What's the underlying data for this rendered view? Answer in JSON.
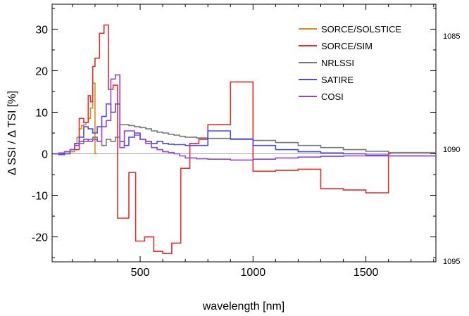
{
  "chart_data": {
    "type": "line",
    "title": "",
    "xlabel": "wavelength [nm]",
    "ylabel": "Δ SSI / Δ TSI [%]",
    "xlim": [
      110,
      1810
    ],
    "ylim": [
      -26,
      36
    ],
    "xticks": [
      500,
      1000,
      1500
    ],
    "yticks": [
      -20,
      -10,
      0,
      10,
      20,
      30
    ],
    "xtick_labels": [
      "500",
      "1000",
      "1500"
    ],
    "ytick_labels": [
      "-20",
      "-10",
      "0",
      "10",
      "20",
      "30"
    ],
    "zero_line": true,
    "grid": false,
    "legend": {
      "position": "top-right"
    },
    "side_labels": [
      "1085",
      "1090",
      "1095"
    ],
    "series": [
      {
        "name": "SORCE/SOLSTICE",
        "color": "#d98c1a",
        "x": [
          115,
          140,
          165,
          190,
          210,
          220,
          230,
          240,
          250,
          260,
          270,
          280,
          290,
          300,
          310
        ],
        "y": [
          0,
          0,
          0,
          0.5,
          2.5,
          4.0,
          6.0,
          6.8,
          7.0,
          7.5,
          8.5,
          11.0,
          17.0,
          0,
          0
        ]
      },
      {
        "name": "SORCE/SIM",
        "color": "#e52b2b",
        "x": [
          210,
          230,
          250,
          270,
          280,
          290,
          300,
          320,
          340,
          360,
          380,
          400,
          425,
          450,
          480,
          520,
          560,
          600,
          640,
          680,
          720,
          760,
          800,
          900,
          1000,
          1100,
          1200,
          1300,
          1400,
          1500,
          1600,
          1610
        ],
        "y": [
          1.0,
          8.5,
          7.5,
          14.0,
          12.5,
          21.0,
          23.0,
          29.0,
          31.0,
          15.5,
          16.5,
          -15.5,
          -15.5,
          -4.5,
          -21.0,
          -20.0,
          -23.5,
          -24.0,
          -21.5,
          -3.5,
          2.5,
          3.5,
          7.0,
          17.3,
          -4.2,
          -4.0,
          -3.7,
          -8.4,
          -8.7,
          -9.4,
          0,
          0
        ]
      },
      {
        "name": "NRLSSI",
        "color": "#777777",
        "x": [
          115,
          140,
          165,
          190,
          210,
          230,
          250,
          270,
          290,
          310,
          330,
          350,
          370,
          390,
          410,
          430,
          450,
          475,
          500,
          525,
          550,
          575,
          600,
          625,
          650,
          675,
          700,
          750,
          800,
          900,
          1000,
          1100,
          1200,
          1300,
          1400,
          1500,
          1600,
          1810
        ],
        "y": [
          0,
          0,
          0.5,
          1.0,
          2.0,
          2.5,
          3.0,
          3.5,
          4.0,
          3.0,
          2.0,
          3.5,
          3.0,
          4.0,
          7.0,
          7.0,
          6.8,
          6.5,
          6.3,
          6.0,
          5.5,
          5.2,
          5.0,
          4.7,
          4.5,
          4.2,
          4.0,
          3.8,
          3.7,
          3.6,
          3.2,
          2.7,
          2.0,
          1.5,
          1.0,
          0.6,
          0.3,
          0.3
        ]
      },
      {
        "name": "SATIRE",
        "color": "#4a4ae6",
        "x": [
          115,
          140,
          165,
          190,
          210,
          230,
          250,
          270,
          290,
          310,
          330,
          350,
          370,
          390,
          410,
          430,
          450,
          475,
          500,
          525,
          550,
          575,
          600,
          625,
          650,
          675,
          700,
          750,
          800,
          900,
          1000,
          1100,
          1200,
          1300,
          1400,
          1500,
          1600,
          1810
        ],
        "y": [
          0,
          -0.2,
          0,
          1.0,
          2.5,
          4.0,
          6.5,
          6.0,
          5.0,
          6.5,
          9.0,
          12.0,
          10.0,
          12.0,
          3.0,
          2.0,
          4.0,
          5.0,
          3.5,
          3.0,
          2.5,
          3.0,
          2.5,
          2.3,
          2.2,
          2.2,
          2.0,
          2.0,
          5.5,
          3.5,
          2.0,
          1.0,
          0.5,
          0.2,
          0.0,
          -0.3,
          -0.5,
          -0.5
        ]
      },
      {
        "name": "COSI",
        "color": "#9b3fd6",
        "x": [
          115,
          140,
          165,
          190,
          210,
          230,
          250,
          270,
          290,
          310,
          330,
          350,
          370,
          390,
          410,
          430,
          450,
          475,
          500,
          525,
          550,
          575,
          600,
          625,
          650,
          675,
          700,
          750,
          800,
          900,
          1000,
          1100,
          1200,
          1300,
          1400,
          1500,
          1600,
          1810
        ],
        "y": [
          0,
          0.2,
          0.5,
          1.0,
          2.0,
          3.0,
          3.5,
          3.0,
          3.5,
          3.0,
          6.5,
          8.0,
          18.0,
          19.0,
          1.5,
          5.5,
          5.5,
          4.5,
          3.5,
          2.5,
          1.5,
          1.0,
          0.5,
          0.3,
          0.0,
          -0.5,
          -1.0,
          -1.2,
          -1.3,
          -1.5,
          -1.3,
          -1.0,
          -0.8,
          -0.6,
          -0.5,
          -0.5,
          -0.5,
          -0.5
        ]
      }
    ]
  }
}
